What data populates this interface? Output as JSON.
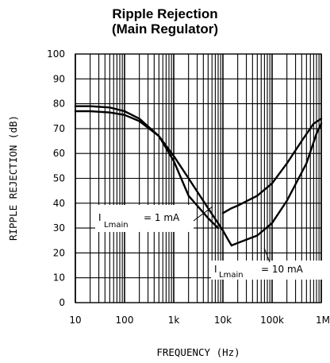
{
  "chart_data": {
    "type": "line",
    "title": "Ripple Rejection",
    "subtitle": "(Main Regulator)",
    "xlabel": "FREQUENCY (Hz)",
    "ylabel": "RIPPLE REJECTION (dB)",
    "x_scale": "log",
    "xlim": [
      10,
      1000000
    ],
    "ylim": [
      0,
      100
    ],
    "grid": true,
    "x_ticks": [
      10,
      100,
      1000,
      10000,
      100000,
      1000000
    ],
    "x_tick_labels": [
      "10",
      "100",
      "1k",
      "10k",
      "100k",
      "1M"
    ],
    "y_ticks": [
      0,
      10,
      20,
      30,
      40,
      50,
      60,
      70,
      80,
      90,
      100
    ],
    "y_tick_labels": [
      "0",
      "10",
      "20",
      "30",
      "40",
      "50",
      "60",
      "70",
      "80",
      "90",
      "100"
    ],
    "series": [
      {
        "name": "I_Lmain = 1 mA",
        "color": "#000000",
        "x": [
          10,
          20,
          50,
          100,
          200,
          500,
          1000,
          2000,
          5000,
          8000
        ],
        "y": [
          79,
          79,
          78.5,
          77,
          74,
          67,
          57,
          43,
          34,
          30
        ]
      },
      {
        "name": "I_Lmain = 1 mA",
        "color": "#000000",
        "x": [
          10000,
          15000,
          20000,
          50000,
          100000,
          200000,
          400000,
          700000,
          1000000
        ],
        "y": [
          36,
          38,
          39,
          43,
          48,
          56,
          65,
          72,
          74
        ]
      },
      {
        "name": "I_Lmain = 10 mA",
        "color": "#000000",
        "x": [
          10,
          20,
          50,
          100,
          200,
          500,
          1000,
          2000,
          5000,
          10000,
          13000,
          15000
        ],
        "y": [
          77,
          77,
          76.5,
          75.5,
          73,
          67,
          59,
          50,
          38,
          29,
          25,
          23
        ]
      },
      {
        "name": "I_Lmain = 10 mA",
        "color": "#000000",
        "x": [
          15000,
          20000,
          50000,
          100000,
          200000,
          500000,
          800000,
          1000000
        ],
        "y": [
          23,
          24,
          27,
          32,
          41,
          56,
          68,
          72
        ]
      }
    ],
    "annotations": [
      {
        "main": "I",
        "sub": "Lmain",
        "rest": "= 1 mA"
      },
      {
        "main": "I",
        "sub": "Lmain",
        "rest": "= 10 mA"
      }
    ]
  }
}
